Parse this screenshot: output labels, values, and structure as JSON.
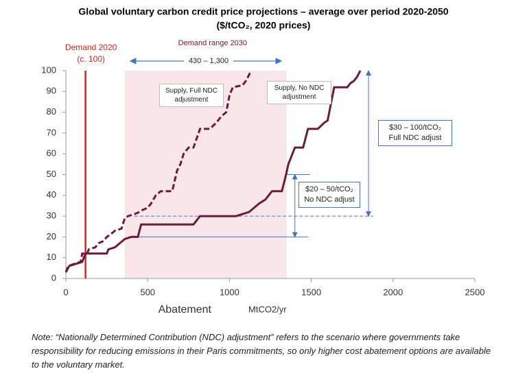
{
  "chart_data": {
    "type": "line",
    "title": "Global voluntary carbon credit price projections – average over period 2020-2050",
    "subtitle": "($/tCO₂, 2020 prices)",
    "xlabel": "Abatement",
    "xlabel_unit": "MtCO2/yr",
    "xlim": [
      0,
      2500
    ],
    "xticks": [
      0,
      500,
      1000,
      1500,
      2000,
      2500
    ],
    "ylim": [
      0,
      100
    ],
    "yticks": [
      0,
      10,
      20,
      30,
      40,
      50,
      60,
      70,
      80,
      90,
      100
    ],
    "series": [
      {
        "name": "Supply, Full NDC adjustment",
        "color": "#6d1a3a",
        "dashed": true,
        "x": [
          0,
          15,
          50,
          90,
          100,
          130,
          140,
          180,
          200,
          230,
          250,
          270,
          300,
          340,
          360,
          380,
          420,
          450,
          470,
          500,
          520,
          550,
          580,
          650,
          680,
          700,
          720,
          750,
          780,
          820,
          880,
          920,
          950,
          980,
          1000,
          1020,
          1080,
          1100,
          1120,
          1130
        ],
        "values": [
          3,
          6,
          7,
          8,
          12,
          12,
          14,
          15,
          17,
          18,
          20,
          21,
          23,
          24,
          29,
          30,
          31,
          32,
          33,
          34,
          36,
          40,
          42,
          42,
          52,
          55,
          60,
          63,
          63,
          72,
          72,
          75,
          78,
          80,
          88,
          92,
          93,
          95,
          98,
          100
        ]
      },
      {
        "name": "Supply, No NDC adjustment",
        "color": "#6d1a3a",
        "dashed": false,
        "x": [
          0,
          20,
          60,
          100,
          120,
          250,
          260,
          300,
          330,
          360,
          400,
          440,
          460,
          780,
          800,
          820,
          1040,
          1080,
          1120,
          1150,
          1180,
          1220,
          1260,
          1320,
          1340,
          1360,
          1400,
          1450,
          1480,
          1540,
          1580,
          1600,
          1640,
          1720,
          1740,
          1760,
          1780,
          1800
        ],
        "values": [
          3,
          6,
          7,
          8,
          12,
          12,
          14,
          15,
          17,
          19,
          20,
          20,
          26,
          26,
          28,
          30,
          30,
          31,
          32,
          34,
          36,
          38,
          42,
          42,
          48,
          55,
          63,
          63,
          72,
          72,
          75,
          76,
          92,
          92,
          94,
          95,
          97,
          100
        ]
      }
    ],
    "demand_line": {
      "x": 120,
      "label": [
        "Demand 2020",
        "(c. 100)"
      ],
      "color": "#e0201b"
    },
    "demand_range": {
      "xlim": [
        360,
        1350
      ],
      "label": "Demand range 2030",
      "range_label": "430 – 1,300",
      "color": "#f3d5da"
    },
    "guide_lines": [
      {
        "y": 20,
        "xlim": [
          400,
          1480
        ],
        "dashed": false
      },
      {
        "y": 30,
        "xlim": [
          420,
          1880
        ],
        "dashed": true
      },
      {
        "y": 50,
        "xlim": [
          1350,
          1490
        ],
        "dashed": false
      }
    ],
    "price_ranges": [
      {
        "x": 1850,
        "ylim": [
          30,
          100
        ],
        "label": [
          "$30 – 100/tCO₂",
          "Full NDC adjust"
        ]
      },
      {
        "x": 1400,
        "ylim": [
          20,
          50
        ],
        "label": [
          "$20 – 50/tCO₂",
          "No NDC adjust"
        ]
      }
    ],
    "note": "Note: “Nationally Determined Contribution (NDC) adjustment” refers to the scenario where governments take responsibility for reducing emissions in their Paris commitments, so only higher cost abatement options are available to the voluntary market."
  }
}
